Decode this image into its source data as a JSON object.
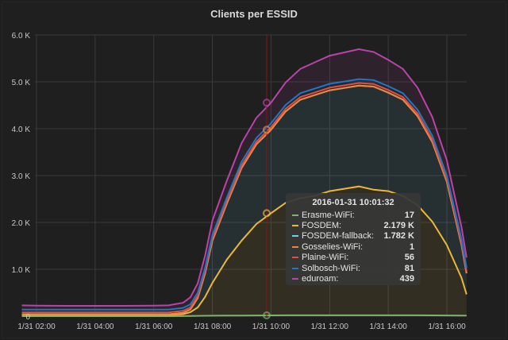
{
  "panel": {
    "title": "Clients per ESSID"
  },
  "tooltip": {
    "time": "2016-01-31 10:01:32",
    "rows": [
      {
        "name": "Erasme-WiFi:",
        "value": "17",
        "color": "#7eb26d"
      },
      {
        "name": "FOSDEM:",
        "value": "2.179 K",
        "color": "#eab839"
      },
      {
        "name": "FOSDEM-fallback:",
        "value": "1.782 K",
        "color": "#6ed0e0"
      },
      {
        "name": "Gosselies-WiFi:",
        "value": "1",
        "color": "#ef843c"
      },
      {
        "name": "Plaine-WiFi:",
        "value": "56",
        "color": "#e24d42"
      },
      {
        "name": "Solbosch-WiFi:",
        "value": "81",
        "color": "#1f78c1"
      },
      {
        "name": "eduroam:",
        "value": "439",
        "color": "#ba43a9"
      }
    ]
  },
  "chart_data": {
    "type": "area",
    "stacked": true,
    "title": "Clients per ESSID",
    "xlabel": "",
    "ylabel": "",
    "ylim": [
      0,
      6000
    ],
    "yticks": [
      "0",
      "1.0 K",
      "2.0 K",
      "3.0 K",
      "4.0 K",
      "5.0 K",
      "6.0 K"
    ],
    "xticks": [
      "1/31 02:00",
      "1/31 04:00",
      "1/31 06:00",
      "1/31 08:00",
      "1/31 10:00",
      "1/31 12:00",
      "1/31 14:00",
      "1/31 16:00"
    ],
    "grid": true,
    "crosshair_time": "1/31 10:01",
    "x_hours": [
      1.5,
      2,
      3,
      4,
      5,
      6,
      6.5,
      7,
      7.25,
      7.5,
      7.75,
      8,
      8.5,
      9,
      9.5,
      10,
      10.5,
      11,
      11.5,
      12,
      12.5,
      13,
      13.5,
      14,
      14.5,
      15,
      15.5,
      16,
      16.5,
      16.67
    ],
    "series": [
      {
        "name": "Erasme-WiFi",
        "color": "#7eb26d",
        "values": [
          0,
          0,
          0,
          0,
          0,
          0,
          0,
          2,
          4,
          6,
          8,
          10,
          12,
          14,
          16,
          17,
          18,
          18,
          18,
          18,
          18,
          18,
          18,
          18,
          18,
          18,
          17,
          16,
          14,
          14
        ]
      },
      {
        "name": "FOSDEM",
        "color": "#eab839",
        "values": [
          30,
          30,
          30,
          30,
          30,
          30,
          30,
          40,
          80,
          180,
          400,
          700,
          1200,
          1600,
          1950,
          2180,
          2400,
          2500,
          2550,
          2650,
          2700,
          2750,
          2680,
          2650,
          2550,
          2350,
          2000,
          1500,
          800,
          450
        ]
      },
      {
        "name": "FOSDEM-fallback",
        "color": "#6ed0e0",
        "values": [
          10,
          10,
          10,
          10,
          10,
          10,
          10,
          30,
          60,
          200,
          500,
          900,
          1200,
          1550,
          1700,
          1780,
          1950,
          2100,
          2150,
          2150,
          2150,
          2150,
          2200,
          2100,
          2050,
          1900,
          1700,
          1350,
          700,
          450
        ]
      },
      {
        "name": "Gosselies-WiFi",
        "color": "#ef843c",
        "values": [
          0,
          0,
          0,
          0,
          0,
          0,
          0,
          0,
          0,
          0,
          0,
          1,
          1,
          1,
          1,
          1,
          1,
          1,
          1,
          1,
          1,
          1,
          1,
          1,
          1,
          1,
          1,
          1,
          1,
          1
        ]
      },
      {
        "name": "Plaine-WiFi",
        "color": "#e24d42",
        "values": [
          40,
          40,
          40,
          40,
          40,
          40,
          40,
          42,
          44,
          46,
          48,
          50,
          52,
          54,
          55,
          56,
          56,
          56,
          56,
          56,
          56,
          56,
          56,
          56,
          56,
          55,
          54,
          52,
          50,
          48
        ]
      },
      {
        "name": "Solbosch-WiFi",
        "color": "#1f78c1",
        "values": [
          60,
          60,
          60,
          60,
          60,
          60,
          60,
          62,
          65,
          68,
          70,
          72,
          75,
          78,
          80,
          81,
          82,
          82,
          82,
          82,
          82,
          82,
          82,
          82,
          82,
          80,
          78,
          75,
          70,
          68
        ]
      },
      {
        "name": "eduroam",
        "color": "#ba43a9",
        "values": [
          90,
          85,
          80,
          80,
          80,
          85,
          90,
          110,
          150,
          200,
          260,
          310,
          360,
          400,
          430,
          439,
          480,
          520,
          560,
          600,
          620,
          640,
          600,
          560,
          520,
          470,
          400,
          330,
          260,
          220
        ]
      }
    ]
  }
}
